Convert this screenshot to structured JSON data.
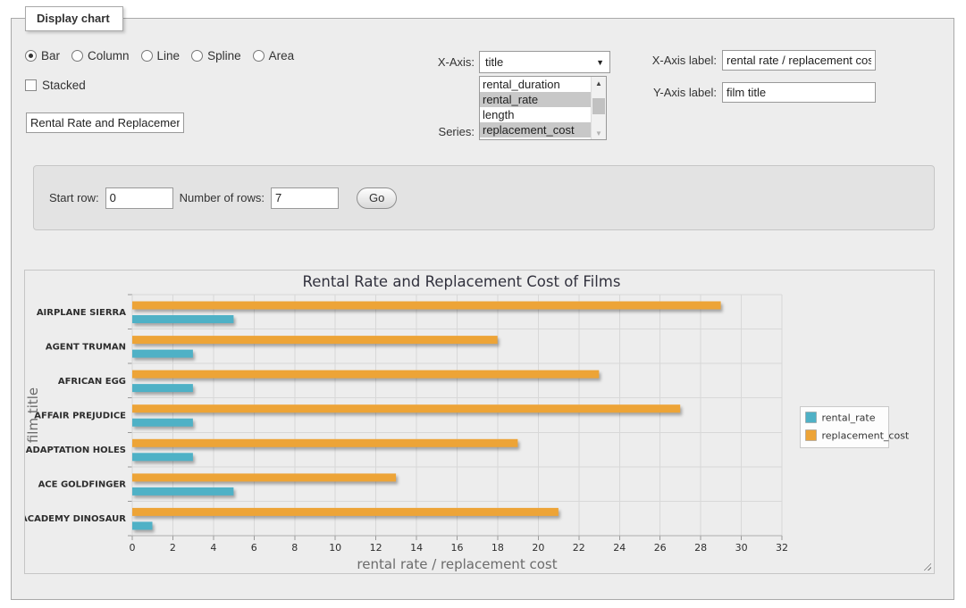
{
  "panel": {
    "legend": "Display chart"
  },
  "controls": {
    "chart_types": {
      "options": [
        "Bar",
        "Column",
        "Line",
        "Spline",
        "Area"
      ],
      "selected": "Bar"
    },
    "stacked": {
      "label": "Stacked",
      "checked": false
    },
    "title_input": {
      "value": "Rental Rate and Replacement Cost of Films"
    },
    "x_axis": {
      "label": "X-Axis:",
      "value": "title"
    },
    "series": {
      "label": "Series:",
      "options": [
        "rental_duration",
        "rental_rate",
        "length",
        "replacement_cost"
      ],
      "selected": [
        "rental_rate",
        "replacement_cost"
      ]
    },
    "x_axis_label": {
      "label": "X-Axis label:",
      "value": "rental rate / replacement cost"
    },
    "y_axis_label": {
      "label": "Y-Axis label:",
      "value": "film title"
    }
  },
  "row_controls": {
    "start_row": {
      "label": "Start row:",
      "value": "0"
    },
    "num_rows": {
      "label": "Number of rows:",
      "value": "7"
    },
    "go_label": "Go"
  },
  "chart_data": {
    "type": "bar",
    "orientation": "horizontal",
    "title": "Rental Rate and Replacement Cost of Films",
    "categories": [
      "AIRPLANE SIERRA",
      "AGENT TRUMAN",
      "AFRICAN EGG",
      "AFFAIR PREJUDICE",
      "ADAPTATION HOLES",
      "ACE GOLDFINGER",
      "ACADEMY DINOSAUR"
    ],
    "series": [
      {
        "name": "rental_rate",
        "color": "#4FB1C6",
        "values": [
          4.99,
          2.99,
          2.99,
          2.99,
          2.99,
          4.99,
          0.99
        ]
      },
      {
        "name": "replacement_cost",
        "color": "#EDA437",
        "values": [
          28.99,
          17.99,
          22.99,
          26.99,
          18.99,
          12.99,
          20.99
        ]
      }
    ],
    "xlabel": "rental rate / replacement cost",
    "ylabel": "film title",
    "xlim": [
      0,
      32
    ],
    "xtick_step": 2,
    "grid": true,
    "legend_position": "right",
    "colors": {
      "grid": "#d8d8d8",
      "tick": "#999999",
      "axis_text": "#2d2d2d",
      "axis_title": "#6b6b6b",
      "title_text": "#32323e",
      "legend_border": "#c9c9c9",
      "legend_bg": "#fdfdfd"
    }
  }
}
